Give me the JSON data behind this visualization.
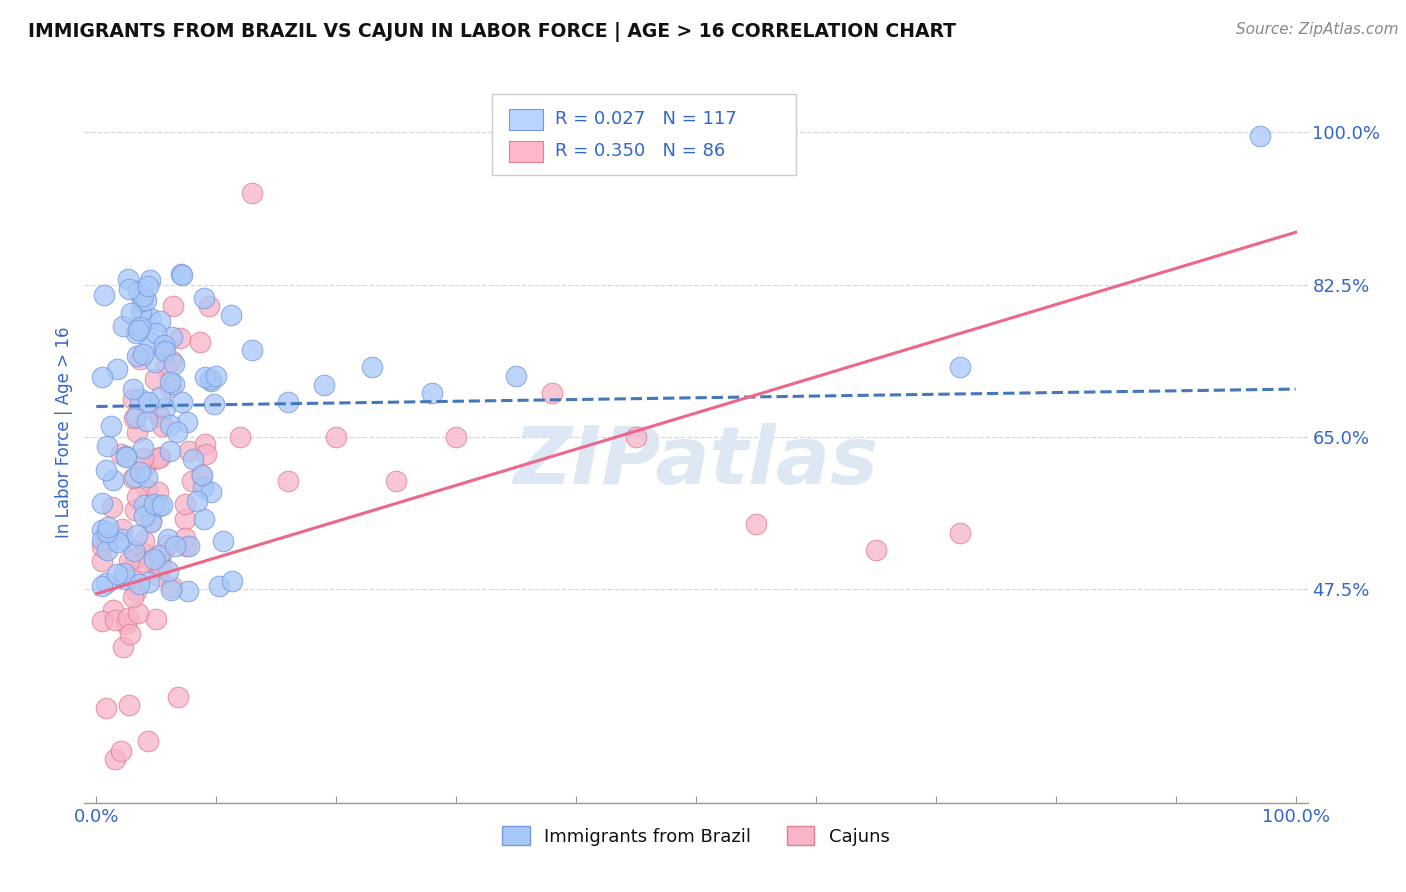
{
  "title": "IMMIGRANTS FROM BRAZIL VS CAJUN IN LABOR FORCE | AGE > 16 CORRELATION CHART",
  "source_text": "Source: ZipAtlas.com",
  "ylabel": "In Labor Force | Age > 16",
  "y_tick_labels": [
    "47.5%",
    "65.0%",
    "82.5%",
    "100.0%"
  ],
  "y_tick_values": [
    0.475,
    0.65,
    0.825,
    1.0
  ],
  "x_lim": [
    -0.01,
    1.01
  ],
  "y_lim": [
    0.23,
    1.08
  ],
  "brazil_color": "#a8c8f8",
  "brazil_edge_color": "#7799dd",
  "cajun_color": "#f8b4c8",
  "cajun_edge_color": "#e08090",
  "brazil_line_color": "#4477bb",
  "cajun_line_color": "#ee6688",
  "R_brazil": 0.027,
  "N_brazil": 117,
  "R_cajun": 0.35,
  "N_cajun": 86,
  "background_color": "#ffffff",
  "grid_color": "#d0d8e8",
  "title_color": "#111111",
  "label_color": "#3366cc",
  "axis_color": "#999999",
  "watermark_color": "#dde8f4",
  "legend_brazil_color": "#b8d4ff",
  "legend_cajun_color": "#ffb8cc",
  "brazil_line_start_y": 0.685,
  "brazil_line_end_y": 0.705,
  "cajun_line_start_y": 0.47,
  "cajun_line_end_y": 0.885
}
